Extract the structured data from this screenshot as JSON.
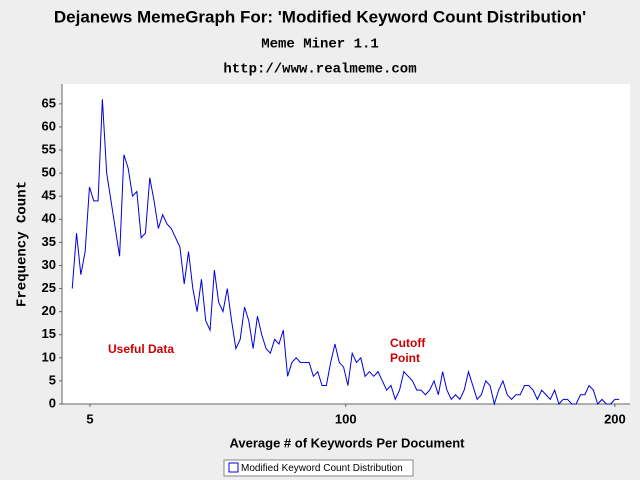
{
  "chart_data": {
    "type": "line",
    "title": "Dejanews MemeGraph For: 'Modified Keyword Count Distribution'",
    "subtitle": "Meme Miner 1.1",
    "url": "http://www.realmeme.com",
    "x_label": "Average # of Keywords Per Document",
    "y_label": "Frequency Count",
    "annotations": [
      [
        "Useful Data"
      ],
      [
        "Cutoff",
        "Point"
      ]
    ],
    "xlim": [
      -5.4,
      205.6
    ],
    "xticks": [
      5,
      100,
      200
    ],
    "ylim": [
      0,
      69.3
    ],
    "yticks": [
      0,
      5,
      10,
      15,
      20,
      25,
      30,
      35,
      40,
      45,
      50,
      55,
      60,
      65
    ],
    "legend": "bottom",
    "x": [
      -1.6,
      0,
      1.6,
      3.2,
      4.8,
      6.4,
      8,
      9.6,
      11.2,
      12.8,
      14.4,
      16,
      17.6,
      19.2,
      20.8,
      22.4,
      24,
      25.6,
      27.2,
      28.8,
      30.4,
      32,
      33.6,
      35.2,
      36.8,
      38.4,
      40,
      41.6,
      43.2,
      44.8,
      46.4,
      48,
      49.6,
      51.2,
      52.8,
      54.4,
      56,
      57.6,
      59.2,
      60.8,
      62.4,
      64,
      65.6,
      67.2,
      68.8,
      70.4,
      72,
      73.6,
      75.2,
      76.8,
      78.4,
      80,
      81.6,
      83.2,
      84.8,
      86.4,
      88,
      89.6,
      91.2,
      92.8,
      94.4,
      96,
      97.6,
      99.2,
      100.8,
      102.4,
      104,
      105.6,
      107.2,
      108.8,
      110.4,
      112,
      113.6,
      115.2,
      116.8,
      118.4,
      120,
      121.6,
      123.2,
      124.8,
      126.4,
      128,
      129.6,
      131.2,
      132.8,
      134.4,
      136,
      137.6,
      139.2,
      140.8,
      142.4,
      144,
      145.6,
      147.2,
      148.8,
      150.4,
      152,
      153.6,
      155.2,
      156.8,
      158.4,
      160,
      161.6,
      163.2,
      164.8,
      166.4,
      168,
      169.6,
      171.2,
      172.8,
      174.4,
      176,
      177.6,
      179.2,
      180.8,
      182.4,
      184,
      185.6,
      187.2,
      188.8,
      190.4,
      192,
      193.6,
      195.2,
      196.8,
      198.4,
      200,
      201.6
    ],
    "series": [
      {
        "name": "Modified Keyword Count Distribution",
        "color": "#0000dd",
        "values": [
          25,
          37,
          28,
          33,
          47,
          44,
          44,
          66,
          50,
          44,
          38,
          32,
          54,
          51,
          45,
          46,
          36,
          37,
          49,
          44,
          38,
          41,
          39,
          38,
          36,
          34,
          26,
          33,
          25,
          20,
          27,
          18,
          16,
          29,
          22,
          20,
          25,
          18,
          12,
          14,
          21,
          18,
          12,
          19,
          15,
          12,
          11,
          14,
          13,
          16,
          6,
          9,
          10,
          9,
          9,
          9,
          6,
          7,
          4,
          4,
          9,
          13,
          9,
          8,
          4,
          11,
          9,
          10,
          6,
          7,
          6,
          7,
          5,
          3,
          4,
          1,
          3,
          7,
          6,
          5,
          3,
          3,
          2,
          3,
          5,
          2,
          7,
          3,
          1,
          2,
          1,
          3,
          7,
          4,
          1,
          2,
          5,
          4,
          0,
          3,
          5,
          2,
          1,
          2,
          2,
          4,
          4,
          3,
          1,
          3,
          2,
          1,
          3,
          0,
          1,
          1,
          0,
          0,
          2,
          2,
          4,
          3,
          0,
          1,
          0,
          0,
          1,
          1
        ]
      }
    ]
  }
}
